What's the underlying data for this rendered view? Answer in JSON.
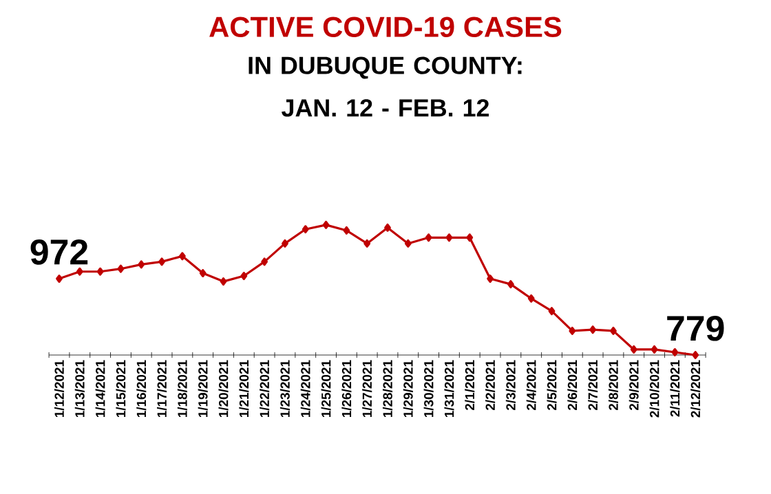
{
  "chart_data": {
    "type": "line",
    "title": "ACTIVE COVID-19 CASES",
    "subtitle": "IN DUBUQUE COUNTY: JAN. 12  - FEB. 12",
    "categories": [
      "1/12/2021",
      "1/13/2021",
      "1/14/2021",
      "1/15/2021",
      "1/16/2021",
      "1/17/2021",
      "1/18/2021",
      "1/19/2021",
      "1/20/2021",
      "1/21/2021",
      "1/22/2021",
      "1/23/2021",
      "1/24/2021",
      "1/25/2021",
      "1/26/2021",
      "1/27/2021",
      "1/28/2021",
      "1/29/2021",
      "1/30/2021",
      "1/31/2021",
      "2/1/2021",
      "2/2/2021",
      "2/3/2021",
      "2/4/2021",
      "2/5/2021",
      "2/6/2021",
      "2/7/2021",
      "2/8/2021",
      "2/9/2021",
      "2/10/2021",
      "2/11/2021",
      "2/12/2021"
    ],
    "values": [
      972,
      990,
      990,
      997,
      1008,
      1015,
      1029,
      986,
      965,
      979,
      1015,
      1061,
      1097,
      1108,
      1094,
      1061,
      1101,
      1061,
      1076,
      1076,
      1076,
      972,
      958,
      922,
      890,
      840,
      843,
      840,
      793,
      793,
      786,
      779
    ],
    "value_labels": [
      "972",
      null,
      null,
      null,
      null,
      null,
      null,
      null,
      null,
      null,
      null,
      null,
      null,
      null,
      null,
      null,
      null,
      null,
      null,
      null,
      null,
      null,
      null,
      null,
      null,
      null,
      null,
      null,
      null,
      null,
      null,
      "779"
    ],
    "color": "#c00000",
    "marker": "diamond",
    "line_style": "solid",
    "tick_labels": "x",
    "grid": false
  }
}
